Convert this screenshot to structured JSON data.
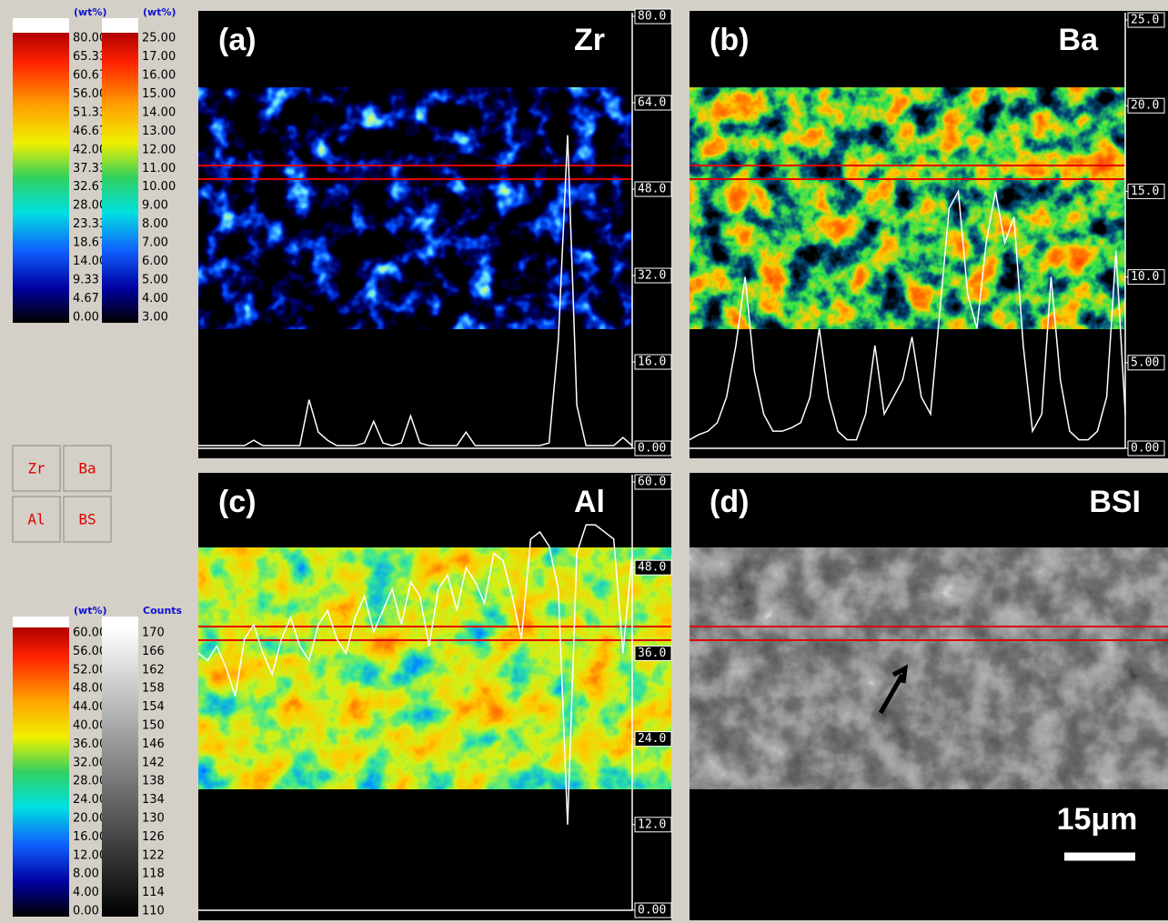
{
  "scales": [
    {
      "unit": "(wt%)",
      "labels": [
        "80.00",
        "65.33",
        "60.67",
        "56.00",
        "51.33",
        "46.67",
        "42.00",
        "37.33",
        "32.67",
        "28.00",
        "23.33",
        "18.67",
        "14.00",
        "9.33",
        "4.67",
        "0.00"
      ]
    },
    {
      "unit": "(wt%)",
      "labels": [
        "25.00",
        "17.00",
        "16.00",
        "15.00",
        "14.00",
        "13.00",
        "12.00",
        "11.00",
        "10.00",
        "9.00",
        "8.00",
        "7.00",
        "6.00",
        "5.00",
        "4.00",
        "3.00"
      ]
    },
    {
      "unit": "(wt%)",
      "labels": [
        "60.00",
        "56.00",
        "52.00",
        "48.00",
        "44.00",
        "40.00",
        "36.00",
        "32.00",
        "28.00",
        "24.00",
        "20.00",
        "16.00",
        "12.00",
        "8.00",
        "4.00",
        "0.00"
      ]
    },
    {
      "unit": "Counts",
      "labels": [
        "170",
        "166",
        "162",
        "158",
        "154",
        "150",
        "146",
        "142",
        "138",
        "134",
        "130",
        "126",
        "122",
        "118",
        "114",
        "110"
      ]
    }
  ],
  "buttons": [
    "Zr",
    "Ba",
    "Al",
    "BS"
  ],
  "panels": [
    {
      "label": "(a)",
      "element": "Zr",
      "ylim": [
        0,
        80
      ],
      "yticks": [
        {
          "value": 80,
          "label": "80.0"
        },
        {
          "value": 64,
          "label": "64.0"
        },
        {
          "value": 48,
          "label": "48.0"
        },
        {
          "value": 32,
          "label": "32.0"
        },
        {
          "value": 16,
          "label": "16.0"
        },
        {
          "value": 0,
          "label": "0.00"
        }
      ],
      "profile": [
        0.5,
        0.5,
        0.5,
        0.5,
        0.5,
        0.5,
        1.5,
        0.5,
        0.5,
        0.5,
        0.5,
        0.5,
        9,
        3,
        1.5,
        0.5,
        0.5,
        0.5,
        1,
        5,
        1,
        0.5,
        1,
        6,
        1,
        0.5,
        0.5,
        0.5,
        0.5,
        3,
        0.5,
        0.5,
        0.5,
        0.5,
        0.5,
        0.5,
        0.5,
        0.5,
        1,
        20,
        58,
        8,
        0.5,
        0.5,
        0.5,
        0.5,
        2,
        0.5
      ]
    },
    {
      "label": "(b)",
      "element": "Ba",
      "ylim": [
        0,
        25
      ],
      "yticks": [
        {
          "value": 25,
          "label": "25.0"
        },
        {
          "value": 20,
          "label": "20.0"
        },
        {
          "value": 15,
          "label": "15.0"
        },
        {
          "value": 10,
          "label": "10.0"
        },
        {
          "value": 5,
          "label": "5.00"
        },
        {
          "value": 0,
          "label": "0.00"
        }
      ],
      "profile": [
        0.5,
        0.8,
        1,
        1.5,
        3,
        6,
        10,
        4.5,
        2,
        1,
        1,
        1.2,
        1.5,
        3,
        7,
        3,
        1,
        0.5,
        0.5,
        2,
        6,
        2,
        3,
        4,
        6.5,
        3,
        2,
        8,
        14,
        15,
        9,
        7,
        12,
        15,
        12,
        13.5,
        6,
        1,
        2,
        10,
        4,
        1,
        0.5,
        0.5,
        1,
        3,
        11.5,
        2
      ]
    },
    {
      "label": "(c)",
      "element": "Al",
      "ylim": [
        0,
        60
      ],
      "yticks": [
        {
          "value": 60,
          "label": "60.0"
        },
        {
          "value": 48,
          "label": "48.0"
        },
        {
          "value": 36,
          "label": "36.0"
        },
        {
          "value": 24,
          "label": "24.0"
        },
        {
          "value": 12,
          "label": "12.0"
        },
        {
          "value": 0,
          "label": "0.00"
        }
      ],
      "profile": [
        36,
        35,
        37,
        34,
        30,
        38,
        40,
        36,
        33,
        38,
        41,
        37,
        35,
        40,
        42,
        38,
        36,
        41,
        44,
        39,
        42,
        45,
        40,
        46,
        44,
        37,
        45,
        47,
        42,
        48,
        46,
        43,
        50,
        49,
        44,
        38,
        52,
        53,
        51,
        45,
        12,
        50,
        54,
        54,
        53,
        52,
        36,
        50
      ]
    },
    {
      "label": "(d)",
      "element": "BSI"
    }
  ],
  "scale_bar": "15μm"
}
